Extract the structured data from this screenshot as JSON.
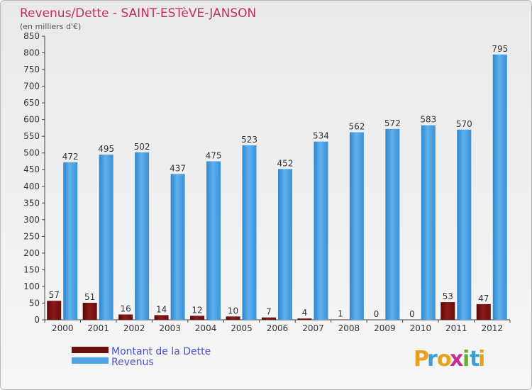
{
  "chart_data": {
    "type": "bar",
    "title": "Revenus/Dette - SAINT-ESTèVE-JANSON",
    "subtitle": "(en milliers d'€)",
    "categories": [
      "2000",
      "2001",
      "2002",
      "2003",
      "2004",
      "2005",
      "2006",
      "2007",
      "2008",
      "2009",
      "2010",
      "2011",
      "2012"
    ],
    "series": [
      {
        "name": "Montant de la Dette",
        "color": "#7a1212",
        "values": [
          57,
          51,
          16,
          14,
          12,
          10,
          7,
          4,
          1,
          0,
          0,
          53,
          47
        ]
      },
      {
        "name": "Revenus",
        "color": "#4da3e6",
        "values": [
          472,
          495,
          502,
          437,
          475,
          523,
          452,
          534,
          562,
          572,
          583,
          570,
          795
        ]
      }
    ],
    "ylim": [
      0,
      850
    ],
    "yticks": [
      0,
      50,
      100,
      150,
      200,
      250,
      300,
      350,
      400,
      450,
      500,
      550,
      600,
      650,
      700,
      750,
      800,
      850
    ],
    "xlabel": "",
    "ylabel": "",
    "grid": false,
    "legend": "bottom-left"
  },
  "logo": {
    "letters": [
      "P",
      "r",
      "o",
      "x",
      "i",
      "t",
      "i"
    ],
    "colors": [
      "#e8a020",
      "#3aa0d8",
      "#e8a020",
      "#c03090",
      "#60b030",
      "#3aa0d8",
      "#e8a020"
    ]
  }
}
